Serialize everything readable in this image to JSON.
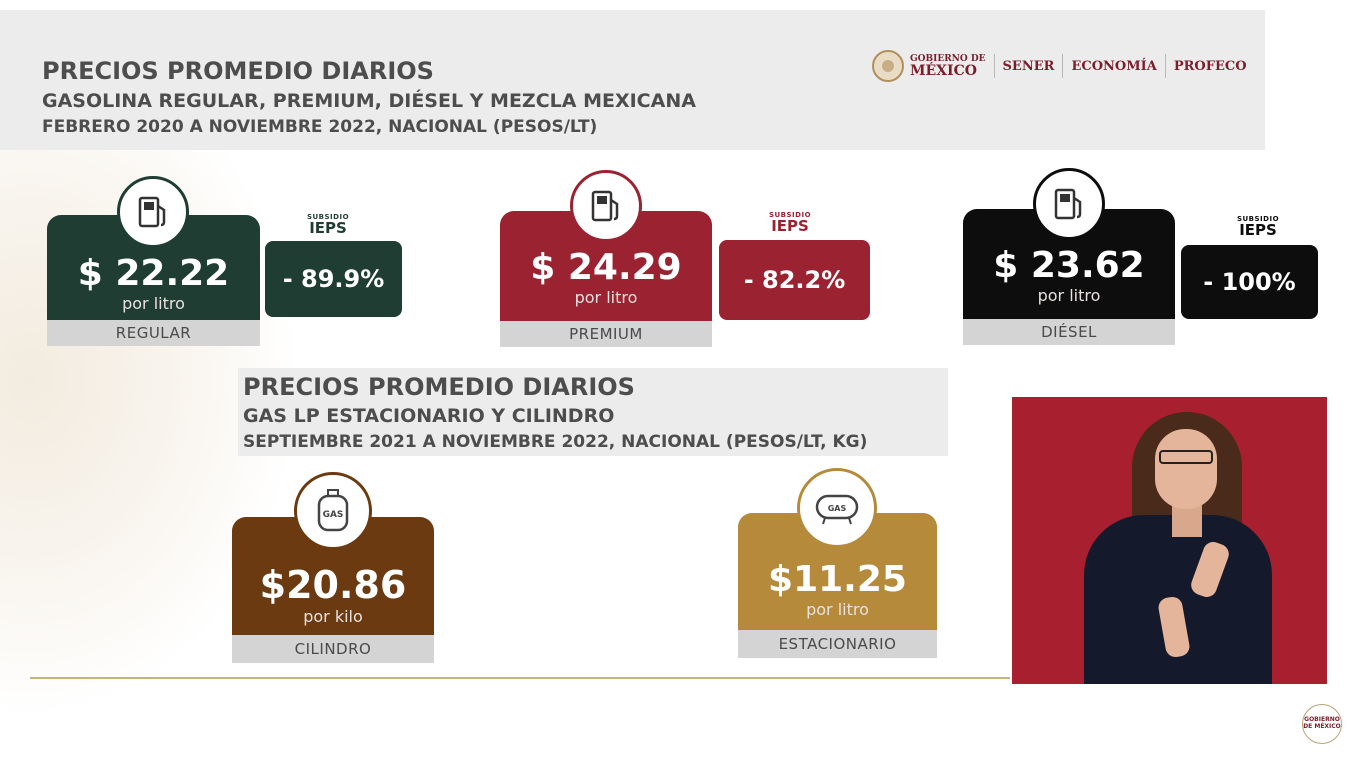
{
  "header": {
    "title": "PRECIOS PROMEDIO DIARIOS",
    "subtitle": "GASOLINA REGULAR, PREMIUM, DIÉSEL Y MEZCLA MEXICANA",
    "period": "FEBRERO 2020 A NOVIEMBRE 2022, NACIONAL (PESOS/LT)"
  },
  "logos": {
    "gobierno_small": "GOBIERNO DE",
    "gobierno_big": "MÉXICO",
    "sener": "SENER",
    "economia": "ECONOMÍA",
    "profeco": "PROFECO"
  },
  "fuels": {
    "regular": {
      "price": "$ 22.22",
      "unit": "por litro",
      "label": "REGULAR",
      "subsidy_small": "SUBSIDIO",
      "subsidy_title": "IEPS",
      "subsidy": "- 89.9%",
      "color": "#1f3d32"
    },
    "premium": {
      "price": "$ 24.29",
      "unit": "por litro",
      "label": "PREMIUM",
      "subsidy_small": "SUBSIDIO",
      "subsidy_title": "IEPS",
      "subsidy": "- 82.2%",
      "color": "#9b2231"
    },
    "diesel": {
      "price": "$ 23.62",
      "unit": "por litro",
      "label": "DIÉSEL",
      "subsidy_small": "SUBSIDIO",
      "subsidy_title": "IEPS",
      "subsidy": "- 100%",
      "color": "#0d0d0d"
    }
  },
  "gas_section": {
    "title": "PRECIOS PROMEDIO DIARIOS",
    "subtitle": "GAS LP ESTACIONARIO Y CILINDRO",
    "period": "SEPTIEMBRE 2021 A NOVIEMBRE 2022, NACIONAL (PESOS/LT, KG)"
  },
  "gas": {
    "cilindro": {
      "price": "$20.86",
      "unit": "por kilo",
      "label": "CILINDRO",
      "icon_text": "GAS",
      "color": "#6b3a10"
    },
    "estacionario": {
      "price": "$11.25",
      "unit": "por litro",
      "label": "ESTACIONARIO",
      "icon_text": "GAS",
      "color": "#b58a3a"
    }
  },
  "corner_logo": "GOBIERNO DE MÉXICO"
}
